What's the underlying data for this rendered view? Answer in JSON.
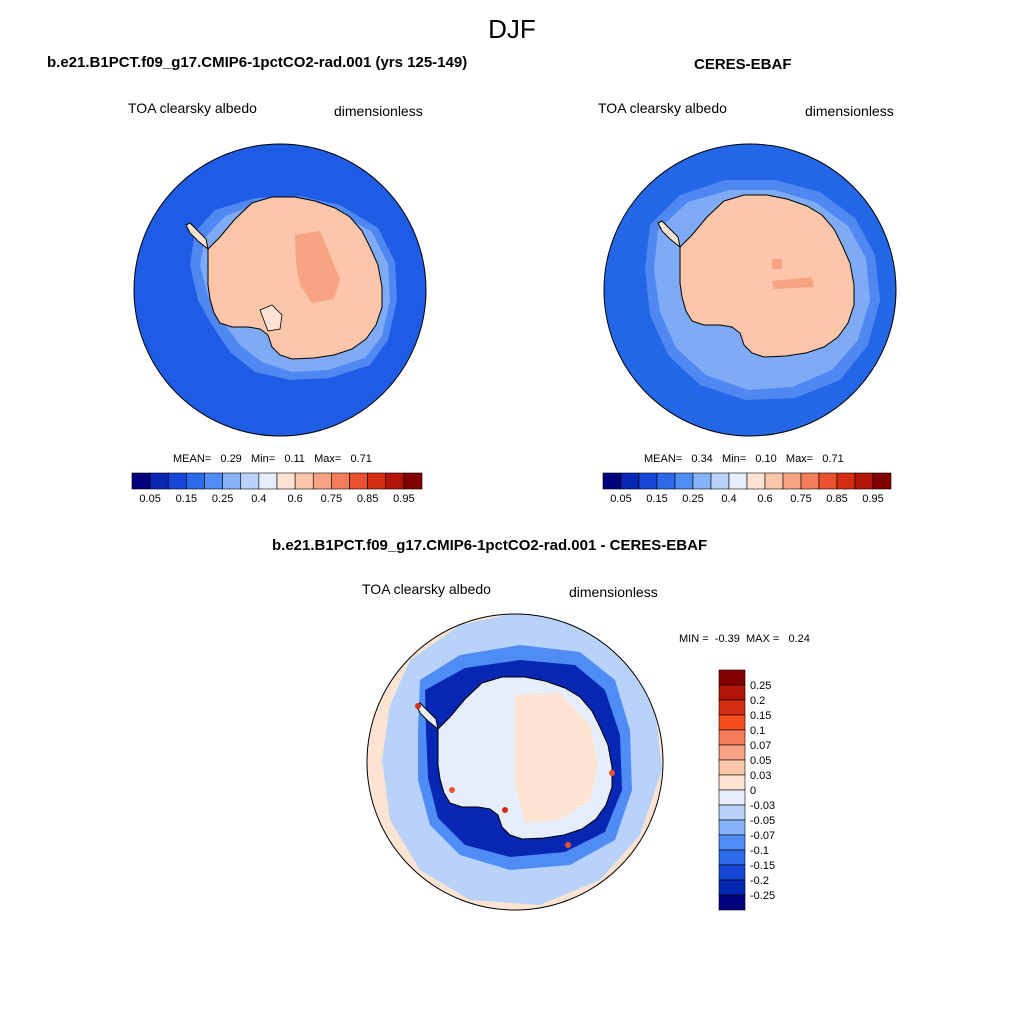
{
  "figure": {
    "title": "DJF"
  },
  "panels": [
    {
      "title": "b.e21.B1PCT.f09_g17.CMIP6-1pctCO2-rad.001 (yrs 125-149)",
      "left_label": "TOA clearsky albedo",
      "right_label": "dimensionless",
      "stats": {
        "mean_label": "MEAN=",
        "mean": "0.29",
        "min_label": "Min=",
        "min": "0.11",
        "max_label": "Max=",
        "max": "0.71"
      }
    },
    {
      "title": "CERES-EBAF",
      "left_label": "TOA clearsky albedo",
      "right_label": "dimensionless",
      "stats": {
        "mean_label": "MEAN=",
        "mean": "0.34",
        "min_label": "Min=",
        "min": "0.10",
        "max_label": "Max=",
        "max": "0.71"
      }
    },
    {
      "title": "b.e21.B1PCT.f09_g17.CMIP6-1pctCO2-rad.001 - CERES-EBAF",
      "left_label": "TOA clearsky albedo",
      "right_label": "dimensionless",
      "stats": {
        "min_label": "MIN =",
        "min": "-0.39",
        "max_label": "MAX =",
        "max": "0.24"
      }
    }
  ],
  "colorbars": {
    "albedo": {
      "colors": [
        "#00007f",
        "#0626b4",
        "#1747d7",
        "#2d6aeb",
        "#4f8df5",
        "#87b3f8",
        "#b9d2fa",
        "#e6eefb",
        "#fde4d2",
        "#fbc6aa",
        "#f8a383",
        "#f37d5a",
        "#ea5230",
        "#d42d12",
        "#b11507",
        "#830000"
      ],
      "tick_labels": [
        "0.05",
        "0.15",
        "0.25",
        "0.4",
        "0.6",
        "0.75",
        "0.85",
        "0.95"
      ]
    },
    "difference": {
      "colors_top_to_bottom": [
        "#830000",
        "#b11507",
        "#d42d12",
        "#f34e1c",
        "#f37d5a",
        "#f8a383",
        "#fbc6aa",
        "#fde4d2",
        "#e6eefb",
        "#b9d2fa",
        "#87b3f8",
        "#4f8df5",
        "#2d6aeb",
        "#1747d7",
        "#0626b4",
        "#00007f"
      ],
      "tick_labels": [
        "0.25",
        "0.2",
        "0.15",
        "0.1",
        "0.07",
        "0.05",
        "0.03",
        "0",
        "-0.03",
        "-0.05",
        "-0.07",
        "-0.1",
        "-0.15",
        "-0.2",
        "-0.25"
      ]
    }
  },
  "map_colors": {
    "ocean_model": "#1f5ce6",
    "ocean_ceres": "#2366e8",
    "ice_edge_light": "#7faaf5",
    "ice_edge_mid": "#4f88f0",
    "continent": "#fbc6aa",
    "continent_high": "#f8a383",
    "peninsula_light": "#fde4d2",
    "diff_ocean_far": "#fde4d2",
    "diff_ocean_near": "#b9d2fa",
    "diff_ring_mid": "#4f8df5",
    "diff_ring_dark": "#0626b4",
    "diff_continent": "#e6eefb",
    "diff_continent_warm": "#fde4d2",
    "coastline": "#000000"
  }
}
